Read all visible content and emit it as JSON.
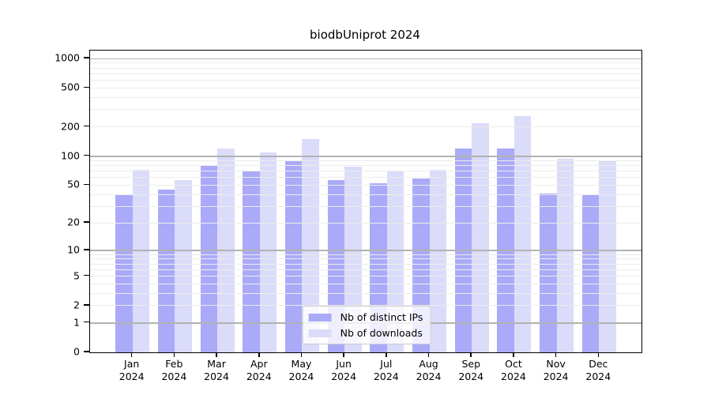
{
  "chart_data": {
    "type": "bar",
    "title": "biodbUniprot 2024",
    "xlabel": "",
    "ylabel": "",
    "categories": [
      "Jan",
      "Feb",
      "Mar",
      "Apr",
      "May",
      "Jun",
      "Jul",
      "Aug",
      "Sep",
      "Oct",
      "Nov",
      "Dec"
    ],
    "year_label": "2024",
    "series": [
      {
        "name": "Nb of distinct IPs",
        "color": "#aaaaf8",
        "values": [
          40,
          45,
          80,
          71,
          88,
          57,
          52,
          59,
          120,
          120,
          41,
          40
        ]
      },
      {
        "name": "Nb of downloads",
        "color": "#dbdbfa",
        "values": [
          72,
          57,
          120,
          110,
          150,
          78,
          71,
          72,
          218,
          258,
          94,
          89
        ]
      }
    ],
    "yscale": "log1p",
    "yticks": [
      0,
      1,
      2,
      5,
      10,
      20,
      50,
      100,
      200,
      500,
      1000
    ],
    "ylim": [
      0,
      1210
    ],
    "grid": true,
    "minor_gridlines": [
      2,
      3,
      4,
      5,
      6,
      7,
      8,
      9,
      20,
      30,
      40,
      50,
      60,
      70,
      80,
      90,
      200,
      300,
      400,
      500,
      600,
      700,
      800,
      900
    ],
    "major_gridlines": [
      1,
      10,
      100,
      1000
    ],
    "legend_position": "lower center",
    "colors": {
      "major_grid": "#b2b2b2",
      "minor_grid": "#ececec",
      "spine": "#000000",
      "background": "#ffffff"
    }
  }
}
